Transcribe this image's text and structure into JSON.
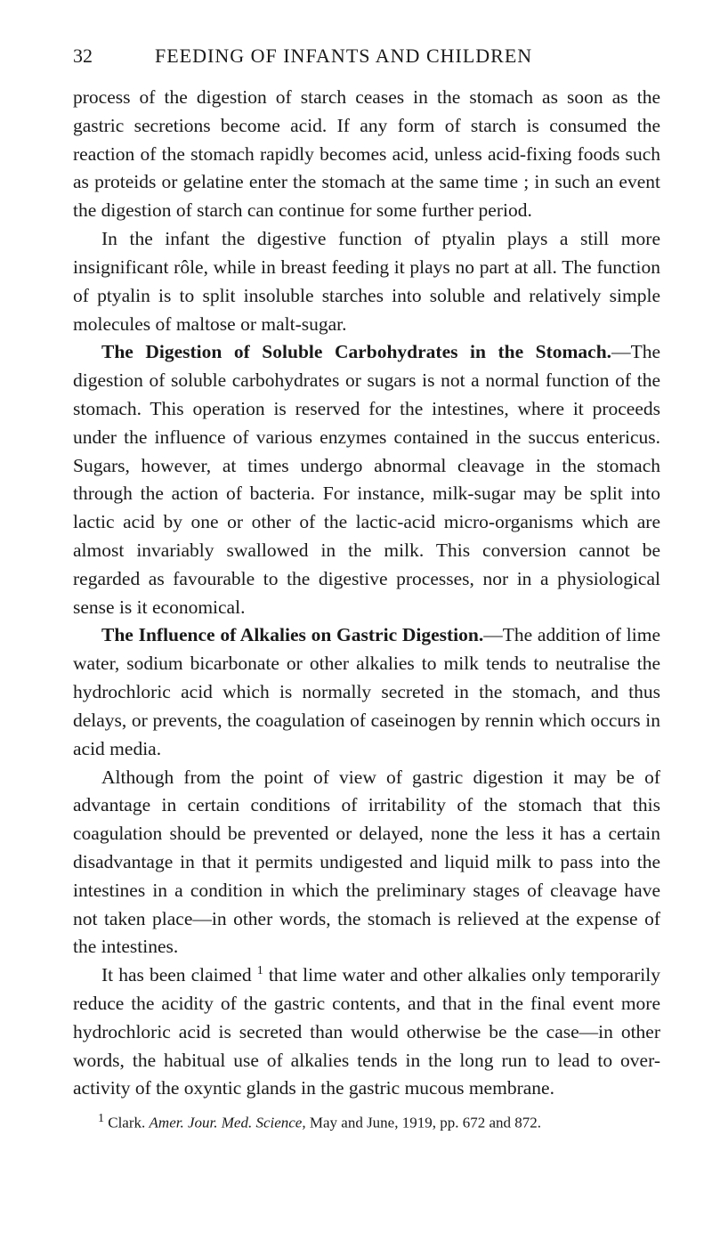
{
  "header": {
    "page_number": "32",
    "running_title": "FEEDING OF INFANTS AND CHILDREN"
  },
  "paragraphs": {
    "p1": "process of the digestion of starch ceases in the stomach as soon as the gastric secretions become acid. If any form of starch is con­sumed the reaction of the stomach rapidly becomes acid, unless acid-fixing foods such as proteids or gelatine enter the stomach at the same time ; in such an event the digestion of starch can continue for some further period.",
    "p2": "In the infant the digestive function of ptyalin plays a still more insignificant rôle, while in breast feeding it plays no part at all. The function of ptyalin is to split insoluble starches into soluble and relatively simple molecules of maltose or malt-sugar.",
    "p3_heading": "The Digestion of Soluble Carbohydrates in the Stomach.",
    "p3_body": "—The digestion of soluble carbohydrates or sugars is not a normal function of the stomach. This operation is reserved for the in­testines, where it proceeds under the influence of various enzymes contained in the succus entericus. Sugars, however, at times undergo abnormal cleavage in the stomach through the action of bacteria. For instance, milk-sugar may be split into lactic acid by one or other of the lactic-acid micro-organisms which are almost invariably swallowed in the milk. This conversion cannot be regarded as favourable to the digestive processes, nor in a physiological sense is it economical.",
    "p4_heading": "The Influence of Alkalies on Gastric Digestion.",
    "p4_body": "—The addition of lime water, sodium bicarbonate or other alkalies to milk tends to neutralise the hydrochloric acid which is normally secreted in the stomach, and thus delays, or prevents, the coagulation of caseinogen by rennin which occurs in acid media.",
    "p5": "Although from the point of view of gastric digestion it may be of advantage in certain conditions of irritability of the stomach that this coagulation should be prevented or delayed, none the less it has a certain disadvantage in that it permits undigested and liquid milk to pass into the intestines in a condition in which the preliminary stages of cleavage have not taken place—in other words, the stomach is relieved at the expense of the intestines.",
    "p6_part1": "It has been claimed ",
    "p6_sup": "1",
    "p6_part2": " that lime water and other alkalies only temporarily reduce the acidity of the gastric contents, and that in the final event more hydrochloric acid is secreted than would otherwise be the case—in other words, the habitual use of alkalies tends in the long run to lead to over-activity of the oxyntic glands in the gastric mucous membrane."
  },
  "footnote": {
    "marker": "1",
    "author": " Clark.   ",
    "italic1": "Amer. Jour. Med. Science,",
    "rest": " May and June, 1919, pp. 672 and 872."
  },
  "colors": {
    "background": "#ffffff",
    "text": "#1a1a1a"
  },
  "typography": {
    "body_fontsize": 21.5,
    "header_fontsize": 22,
    "footnote_fontsize": 17,
    "line_height": 1.48
  }
}
